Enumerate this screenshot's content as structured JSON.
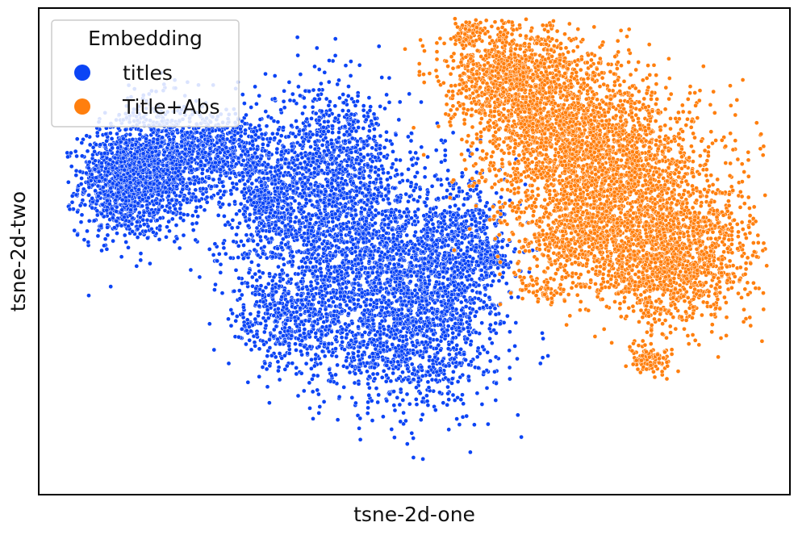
{
  "chart_data": {
    "type": "scatter",
    "title": "",
    "xlabel": "tsne-2d-one",
    "ylabel": "tsne-2d-two",
    "xlim": [
      0,
      100
    ],
    "ylim": [
      0,
      100
    ],
    "show_ticks": false,
    "grid": false,
    "legend": {
      "title": "Embedding",
      "placement": "top-left"
    },
    "series": [
      {
        "name": "titles",
        "color": "#0b44f5",
        "clusters": [
          {
            "cx": 11,
            "cy": 64,
            "sx": 2.8,
            "sy": 5.5,
            "n": 900
          },
          {
            "cx": 16,
            "cy": 68,
            "sx": 3.5,
            "sy": 6.5,
            "n": 900
          },
          {
            "cx": 24,
            "cy": 71,
            "sx": 4.0,
            "sy": 4.0,
            "n": 450
          },
          {
            "cx": 31,
            "cy": 60,
            "sx": 2.5,
            "sy": 7.0,
            "n": 350
          },
          {
            "cx": 38,
            "cy": 61,
            "sx": 4.0,
            "sy": 11.0,
            "n": 700
          },
          {
            "cx": 45,
            "cy": 46,
            "sx": 6.0,
            "sy": 11.0,
            "n": 1500
          },
          {
            "cx": 53,
            "cy": 43,
            "sx": 4.5,
            "sy": 10.0,
            "n": 850
          },
          {
            "cx": 33,
            "cy": 36,
            "sx": 3.5,
            "sy": 5.0,
            "n": 400
          },
          {
            "cx": 48,
            "cy": 29,
            "sx": 6.0,
            "sy": 6.0,
            "n": 450
          },
          {
            "cx": 41,
            "cy": 69,
            "sx": 3.5,
            "sy": 6.0,
            "n": 350
          },
          {
            "cx": 57,
            "cy": 55,
            "sx": 2.5,
            "sy": 8.0,
            "n": 250
          },
          {
            "cx": 60,
            "cy": 49,
            "sx": 1.2,
            "sy": 1.8,
            "n": 120
          },
          {
            "cx": 30,
            "cy": 63,
            "sx": 5.5,
            "sy": 10.0,
            "n": 350
          },
          {
            "cx": 29.5,
            "cy": 61,
            "sx": 0.8,
            "sy": 0.8,
            "n": 40
          }
        ]
      },
      {
        "name": "Title+Abs",
        "color": "#ff7f0e",
        "clusters": [
          {
            "cx": 63,
            "cy": 86,
            "sx": 4.5,
            "sy": 5.5,
            "n": 900
          },
          {
            "cx": 70,
            "cy": 75,
            "sx": 6.0,
            "sy": 8.0,
            "n": 1400
          },
          {
            "cx": 78,
            "cy": 64,
            "sx": 6.5,
            "sy": 9.0,
            "n": 1500
          },
          {
            "cx": 87,
            "cy": 50,
            "sx": 4.5,
            "sy": 7.0,
            "n": 800
          },
          {
            "cx": 72,
            "cy": 52,
            "sx": 4.5,
            "sy": 5.0,
            "n": 500
          },
          {
            "cx": 82,
            "cy": 44,
            "sx": 4.0,
            "sy": 5.0,
            "n": 400
          },
          {
            "cx": 57,
            "cy": 95,
            "sx": 1.2,
            "sy": 1.5,
            "n": 70
          },
          {
            "cx": 81.5,
            "cy": 28,
            "sx": 1.6,
            "sy": 1.4,
            "n": 110
          },
          {
            "cx": 67,
            "cy": 42,
            "sx": 1.8,
            "sy": 1.4,
            "n": 60
          }
        ]
      }
    ]
  }
}
